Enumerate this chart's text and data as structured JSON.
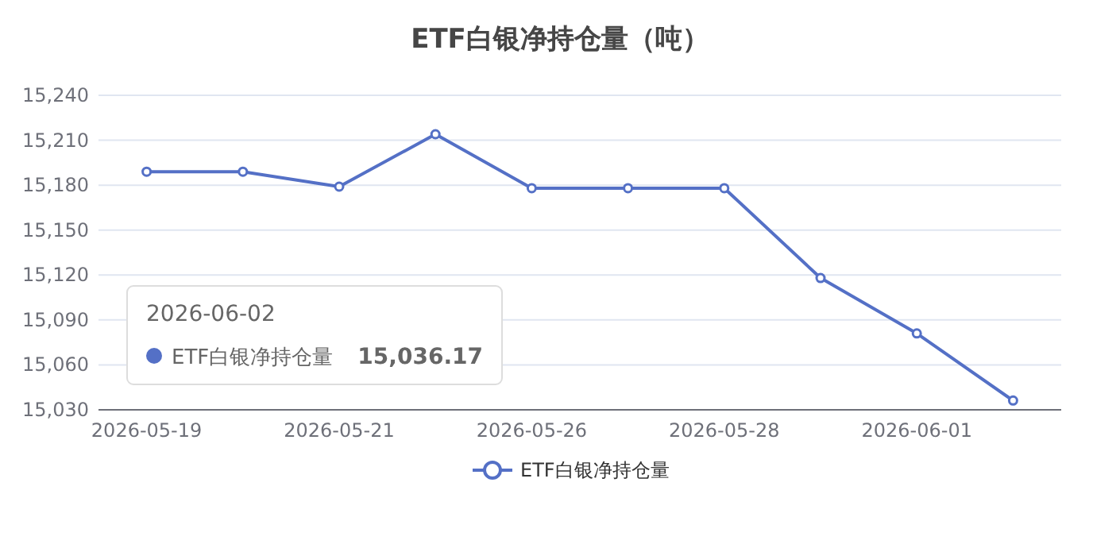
{
  "chart_data": {
    "type": "line",
    "title": "ETF白银净持仓量（吨）",
    "categories": [
      "2026-05-19",
      null,
      "2026-05-21",
      null,
      "2026-05-26",
      null,
      "2026-05-28",
      null,
      "2026-06-01",
      null
    ],
    "series": [
      {
        "name": "ETF白银净持仓量",
        "color": "#5470c6",
        "values": [
          15189,
          15189,
          15179,
          15214,
          15178,
          15178,
          15178,
          15118,
          15081,
          15036.17
        ]
      }
    ],
    "ylim": [
      15030,
      15240
    ],
    "yticks": [
      {
        "value": 15030,
        "label": "15,030"
      },
      {
        "value": 15060,
        "label": "15,060"
      },
      {
        "value": 15090,
        "label": "15,090"
      },
      {
        "value": 15120,
        "label": "15,120"
      },
      {
        "value": 15150,
        "label": "15,150"
      },
      {
        "value": 15180,
        "label": "15,180"
      },
      {
        "value": 15210,
        "label": "15,210"
      },
      {
        "value": 15240,
        "label": "15,240"
      }
    ],
    "grid": "y",
    "legend": "bottom",
    "marker": "circle",
    "line_style": "solid",
    "annotations": [
      "2026-06-02",
      "15,036.17"
    ]
  }
}
